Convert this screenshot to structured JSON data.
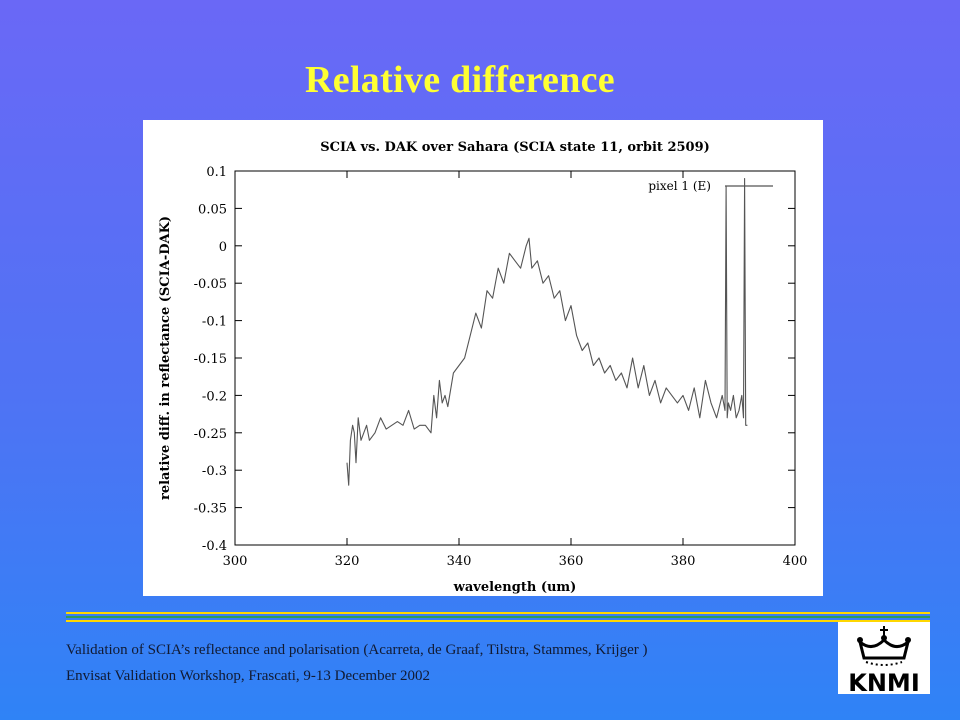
{
  "slide": {
    "title": "Relative difference",
    "footer_line_1": "Validation of SCIA’s reflectance and polarisation (Acarreta, de Graaf, Tilstra, Stammes, Krijger )",
    "footer_line_2": "Envisat Validation Workshop, Frascati, 9-13 December 2002",
    "logo_text": "KNMI",
    "colors": {
      "background_top": "#6a68f6",
      "background_bottom": "#2f83f6",
      "title": "#ffff33",
      "separator_yellow": "#ffd700",
      "separator_green": "#2e9a5c"
    }
  },
  "chart_data": {
    "type": "line",
    "title": "SCIA vs. DAK over Sahara (SCIA state 11, orbit 2509)",
    "xlabel": "wavelength (um)",
    "ylabel": "relative diff. in reflectance (SCIA-DAK)",
    "xlim": [
      300,
      400
    ],
    "ylim": [
      -0.4,
      0.1
    ],
    "xticks": [
      300,
      320,
      340,
      360,
      380,
      400
    ],
    "yticks": [
      0.1,
      0.05,
      0,
      -0.05,
      -0.1,
      -0.15,
      -0.2,
      -0.25,
      -0.3,
      -0.35,
      -0.4
    ],
    "ytick_labels": [
      "0.1",
      "0.05",
      "0",
      "-0.05",
      "-0.1",
      "-0.15",
      "-0.2",
      "-0.25",
      "-0.3",
      "-0.35",
      "-0.4"
    ],
    "legend_position": "top-right",
    "grid": false,
    "series": [
      {
        "name": "pixel 1 (E)",
        "color": "#555555",
        "x": [
          320.0,
          320.3,
          320.6,
          321.0,
          321.3,
          321.6,
          322.0,
          322.5,
          323.0,
          323.5,
          324.0,
          325.0,
          326.0,
          327.0,
          328.0,
          329.0,
          330.0,
          331.0,
          332.0,
          333.0,
          334.0,
          335.0,
          335.5,
          336.0,
          336.5,
          337.0,
          337.5,
          338.0,
          339.0,
          340.0,
          341.0,
          342.0,
          343.0,
          344.0,
          345.0,
          346.0,
          347.0,
          348.0,
          349.0,
          350.0,
          351.0,
          352.0,
          352.5,
          353.0,
          354.0,
          355.0,
          356.0,
          357.0,
          358.0,
          359.0,
          360.0,
          361.0,
          362.0,
          363.0,
          364.0,
          365.0,
          366.0,
          367.0,
          368.0,
          369.0,
          370.0,
          371.0,
          372.0,
          373.0,
          374.0,
          375.0,
          376.0,
          377.0,
          378.0,
          379.0,
          380.0,
          381.0,
          382.0,
          383.0,
          384.0,
          385.0,
          386.0,
          387.0,
          387.5,
          387.7,
          387.9,
          388.1,
          388.5,
          389.0,
          389.5,
          390.0,
          390.5,
          390.8,
          391.0,
          391.2,
          391.5
        ],
        "y": [
          -0.29,
          -0.32,
          -0.26,
          -0.24,
          -0.25,
          -0.29,
          -0.23,
          -0.26,
          -0.25,
          -0.24,
          -0.26,
          -0.25,
          -0.23,
          -0.245,
          -0.24,
          -0.235,
          -0.24,
          -0.22,
          -0.245,
          -0.24,
          -0.24,
          -0.25,
          -0.2,
          -0.23,
          -0.18,
          -0.21,
          -0.2,
          -0.215,
          -0.17,
          -0.16,
          -0.15,
          -0.12,
          -0.09,
          -0.11,
          -0.06,
          -0.07,
          -0.03,
          -0.05,
          -0.01,
          -0.02,
          -0.03,
          0.0,
          0.01,
          -0.03,
          -0.02,
          -0.05,
          -0.04,
          -0.07,
          -0.06,
          -0.1,
          -0.08,
          -0.12,
          -0.14,
          -0.13,
          -0.16,
          -0.15,
          -0.17,
          -0.16,
          -0.18,
          -0.17,
          -0.19,
          -0.15,
          -0.19,
          -0.16,
          -0.2,
          -0.18,
          -0.21,
          -0.19,
          -0.2,
          -0.21,
          -0.2,
          -0.22,
          -0.19,
          -0.23,
          -0.18,
          -0.21,
          -0.23,
          -0.2,
          -0.22,
          0.08,
          -0.23,
          -0.21,
          -0.22,
          -0.2,
          -0.23,
          -0.22,
          -0.2,
          -0.23,
          0.09,
          -0.24,
          -0.24
        ]
      }
    ]
  }
}
